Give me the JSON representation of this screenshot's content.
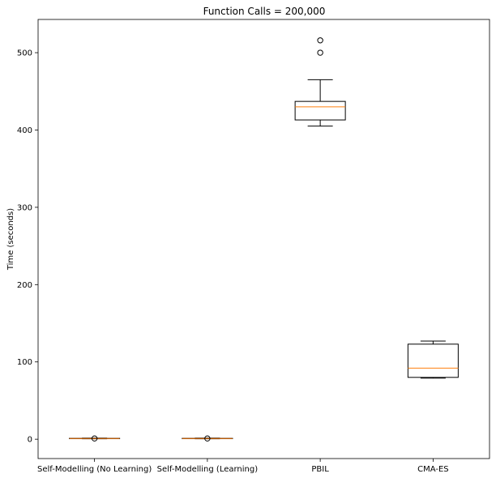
{
  "chart_data": {
    "type": "box",
    "title": "Function Calls = 200,000",
    "xlabel": "",
    "ylabel": "Time (seconds)",
    "ylim": [
      -25,
      543
    ],
    "yticks": [
      0,
      100,
      200,
      300,
      400,
      500
    ],
    "grid": false,
    "categories": [
      "Self-Modelling (No Learning)",
      "Self-Modelling (Learning)",
      "PBIL",
      "CMA-ES"
    ],
    "boxes": [
      {
        "category": "Self-Modelling (No Learning)",
        "whisker_low": 0.6,
        "q1": 0.8,
        "median": 1.0,
        "q3": 1.2,
        "whisker_high": 1.5,
        "outliers": [
          1.0
        ]
      },
      {
        "category": "Self-Modelling (Learning)",
        "whisker_low": 0.6,
        "q1": 0.8,
        "median": 1.0,
        "q3": 1.2,
        "whisker_high": 1.5,
        "outliers": [
          1.0
        ]
      },
      {
        "category": "PBIL",
        "whisker_low": 405,
        "q1": 413,
        "median": 430,
        "q3": 437,
        "whisker_high": 465,
        "outliers": [
          500,
          516
        ]
      },
      {
        "category": "CMA-ES",
        "whisker_low": 79,
        "q1": 80,
        "median": 92,
        "q3": 123,
        "whisker_high": 127,
        "outliers": []
      }
    ],
    "colors": {
      "box": "#000000",
      "median": "#ff7f0e",
      "background": "#ffffff"
    }
  }
}
